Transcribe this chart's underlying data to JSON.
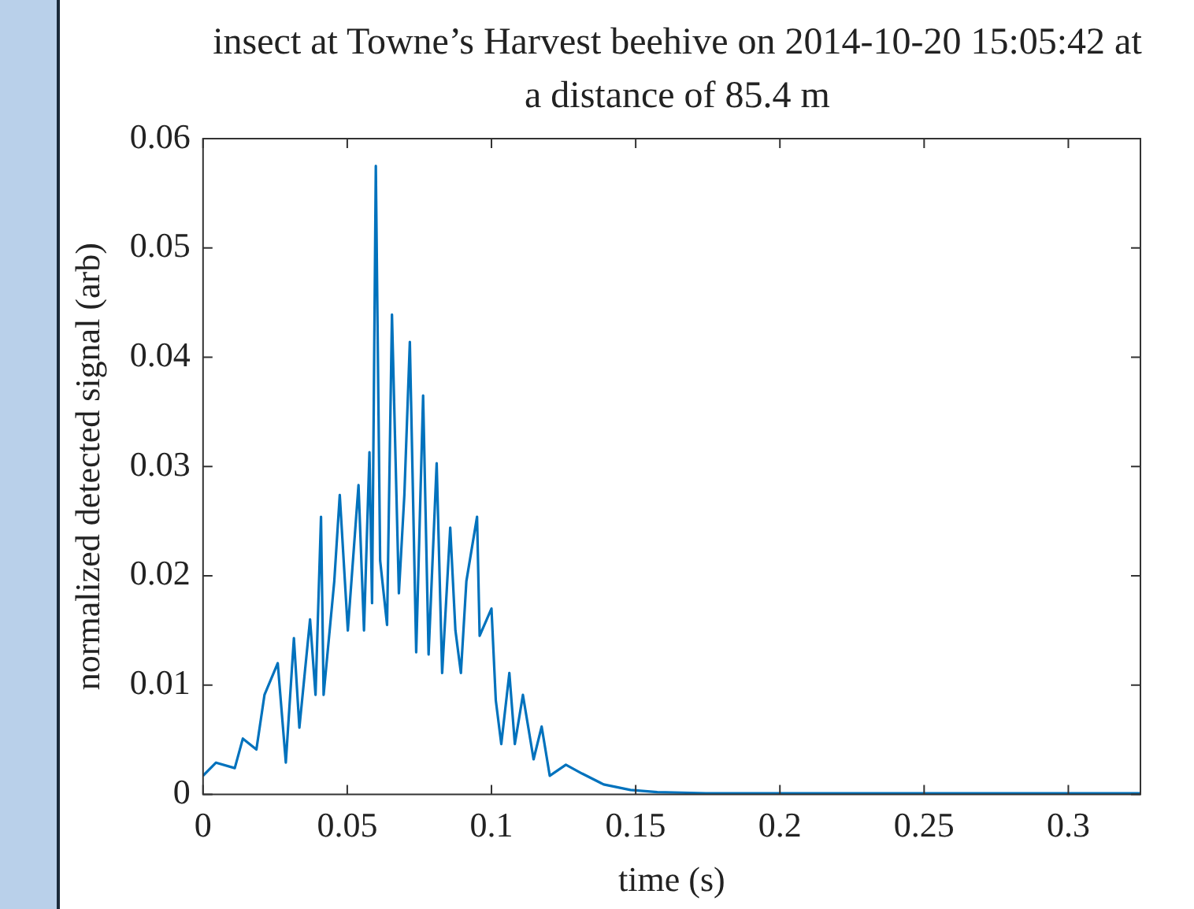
{
  "chart_data": {
    "type": "line",
    "title": "insect at Towne’s Harvest beehive on 2014-10-20 15:05:42 at a distance of 85.4 m",
    "xlabel": "time (s)",
    "ylabel": "normalized detected signal (arb)",
    "xlim": [
      0,
      0.325
    ],
    "xticks": [
      0,
      0.05,
      0.1,
      0.15,
      0.2,
      0.25,
      0.3
    ],
    "ylim": [
      0,
      0.06
    ],
    "yticks": [
      0,
      0.01,
      0.02,
      0.03,
      0.04,
      0.05,
      0.06
    ],
    "marker": "none",
    "line_style": "solid",
    "series": [
      {
        "color": "#0072bd",
        "x": [
          0,
          0.0045,
          0.011,
          0.0138,
          0.0185,
          0.0213,
          0.0259,
          0.0287,
          0.0315,
          0.0334,
          0.0371,
          0.039,
          0.0409,
          0.0418,
          0.0455,
          0.0474,
          0.0502,
          0.0539,
          0.0558,
          0.0577,
          0.0586,
          0.0599,
          0.0614,
          0.0638,
          0.0655,
          0.0679,
          0.0698,
          0.0717,
          0.0739,
          0.0763,
          0.0782,
          0.081,
          0.0829,
          0.0857,
          0.0875,
          0.0894,
          0.0913,
          0.095,
          0.0959,
          0.1,
          0.1015,
          0.1034,
          0.1062,
          0.1081,
          0.1109,
          0.1146,
          0.1174,
          0.1202,
          0.1258,
          0.1314,
          0.1389,
          0.1482,
          0.1575,
          0.1743,
          0.2,
          0.25,
          0.325
        ],
        "values": [
          0.0017,
          0.0029,
          0.0024,
          0.0051,
          0.0041,
          0.0091,
          0.012,
          0.0029,
          0.0143,
          0.0061,
          0.016,
          0.0091,
          0.0254,
          0.0091,
          0.0195,
          0.0274,
          0.015,
          0.0283,
          0.015,
          0.0313,
          0.0175,
          0.0575,
          0.0214,
          0.0155,
          0.0439,
          0.0184,
          0.0274,
          0.0414,
          0.013,
          0.0365,
          0.0128,
          0.0303,
          0.0111,
          0.0244,
          0.015,
          0.0111,
          0.0195,
          0.0254,
          0.0145,
          0.017,
          0.0086,
          0.0046,
          0.0111,
          0.0046,
          0.0091,
          0.0032,
          0.0062,
          0.0017,
          0.0027,
          0.0019,
          0.0009,
          0.0004,
          0.0002,
          0.0001,
          0.0001,
          0.0001,
          0.0001
        ]
      }
    ]
  }
}
